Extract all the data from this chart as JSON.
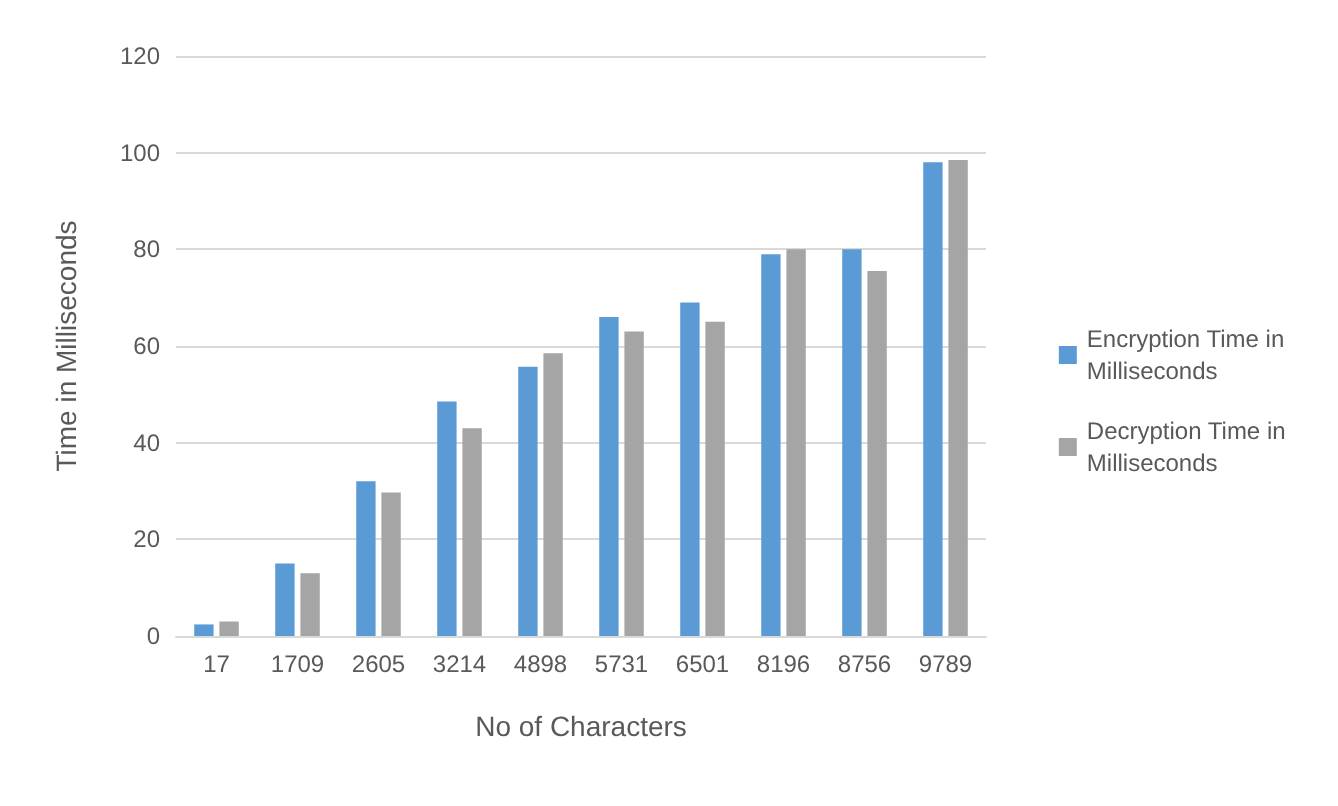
{
  "chart_data": {
    "type": "bar",
    "xlabel": "No of Characters",
    "ylabel": "Time in Milliseconds",
    "categories": [
      "17",
      "1709",
      "2605",
      "3214",
      "4898",
      "5731",
      "6501",
      "8196",
      "8756",
      "9789"
    ],
    "series": [
      {
        "name": "Encryption Time in Milliseconds",
        "color": "#5b9bd5",
        "values": [
          2.4,
          15,
          32,
          48.5,
          55.7,
          66,
          69,
          79,
          80,
          98
        ]
      },
      {
        "name": "Decryption Time in Milliseconds",
        "color": "#a5a5a5",
        "values": [
          3,
          13,
          29.7,
          43,
          58.5,
          63,
          65,
          80,
          75.5,
          98.5
        ]
      }
    ],
    "ylim": [
      0,
      120
    ],
    "yticks": [
      0,
      20,
      40,
      60,
      80,
      100,
      120
    ],
    "grid": "y",
    "legend": "right"
  }
}
